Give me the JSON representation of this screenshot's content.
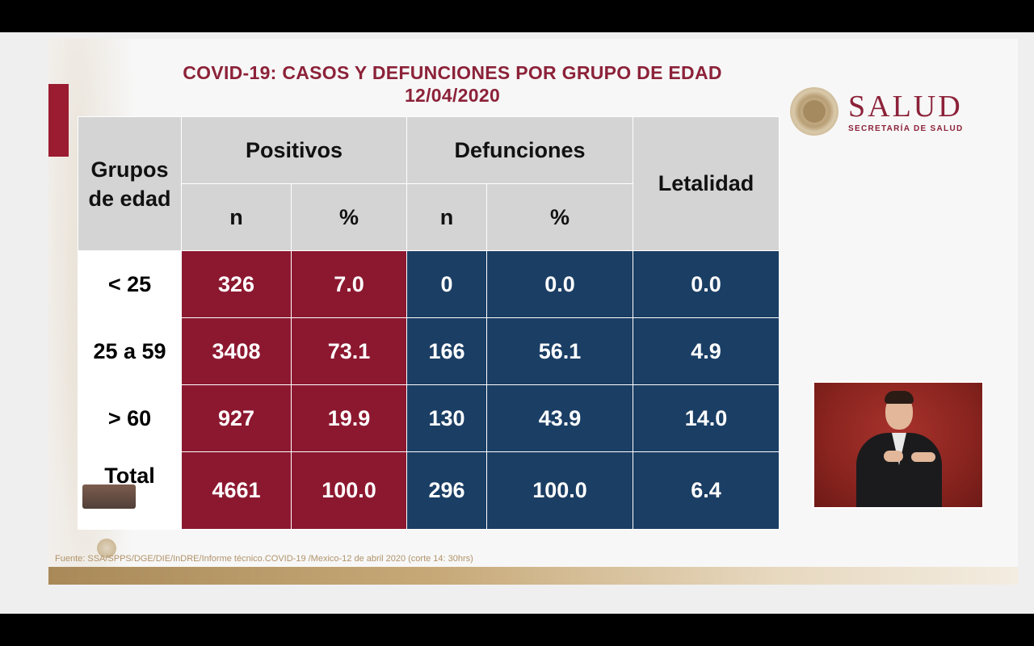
{
  "slide": {
    "title_line1": "COVID-19: CASOS Y DEFUNCIONES POR GRUPO DE EDAD",
    "title_line2": "12/04/2020",
    "logo_word": "SALUD",
    "logo_sub": "SECRETARÍA DE SALUD",
    "source": "Fuente: SSA/SPPS/DGE/DIE/InDRE/Informe técnico.COVID-19 /Mexico-12 de abril 2020 (corte 14: 30hrs)"
  },
  "table": {
    "header_group": "Grupos de edad",
    "header_positivos": "Positivos",
    "header_defunciones": "Defunciones",
    "header_letalidad": "Letalidad",
    "sub_n1": "n",
    "sub_pct1": "%",
    "sub_n2": "n",
    "sub_pct2": "%",
    "rows": [
      {
        "group": "< 25",
        "pos_n": "326",
        "pos_pct": "7.0",
        "def_n": "0",
        "def_pct": "0.0",
        "letalidad": "0.0"
      },
      {
        "group": "25 a 59",
        "pos_n": "3408",
        "pos_pct": "73.1",
        "def_n": "166",
        "def_pct": "56.1",
        "letalidad": "4.9"
      },
      {
        "group": "> 60",
        "pos_n": "927",
        "pos_pct": "19.9",
        "def_n": "130",
        "def_pct": "43.9",
        "letalidad": "14.0"
      },
      {
        "group": "Total",
        "pos_n": "4661",
        "pos_pct": "100.0",
        "def_n": "296",
        "def_pct": "100.0",
        "letalidad": "6.4"
      }
    ]
  },
  "colors": {
    "title": "#8c2239",
    "positivos": "#8c1830",
    "defunciones": "#1b3e64",
    "header": "#d4d4d4"
  }
}
